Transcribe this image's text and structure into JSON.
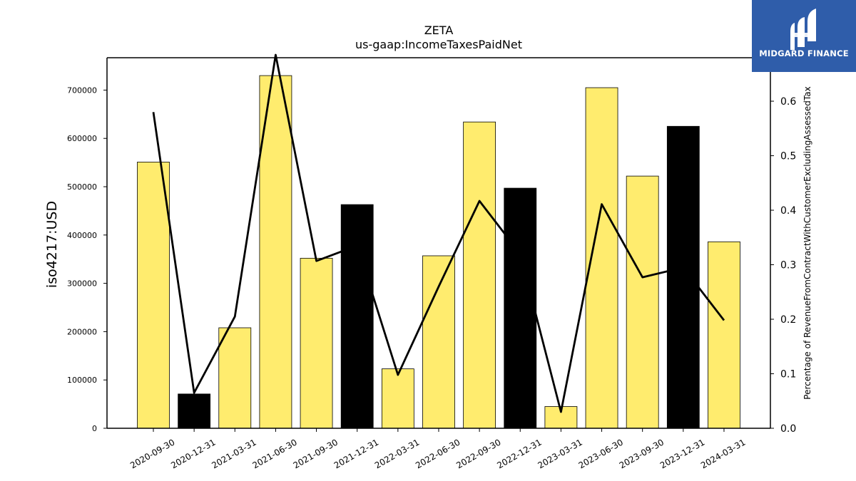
{
  "chart_data": {
    "type": "bar",
    "title": "ZETA",
    "subtitle": "us-gaap:IncomeTaxesPaidNet",
    "ylabel": "iso4217:USD",
    "y2label": "Percentage of RevenueFromContractWithCustomerExcludingAssessedTax",
    "categories": [
      "2020-09-30",
      "2020-12-31",
      "2021-03-31",
      "2021-06-30",
      "2021-09-30",
      "2021-12-31",
      "2022-03-31",
      "2022-06-30",
      "2022-09-30",
      "2022-12-31",
      "2023-03-31",
      "2023-06-30",
      "2023-09-30",
      "2023-12-31",
      "2024-03-31"
    ],
    "values": [
      551000,
      71000,
      208000,
      730000,
      352000,
      463000,
      123000,
      357000,
      634000,
      497000,
      45000,
      705000,
      522000,
      625000,
      386000
    ],
    "bar_colors": [
      "#ffec6e",
      "#000000",
      "#ffec6e",
      "#ffec6e",
      "#ffec6e",
      "#000000",
      "#ffec6e",
      "#ffec6e",
      "#ffec6e",
      "#000000",
      "#ffec6e",
      "#ffec6e",
      "#ffec6e",
      "#000000",
      "#ffec6e"
    ],
    "line_values": [
      0.58,
      0.065,
      0.205,
      0.685,
      0.307,
      0.335,
      0.098,
      0.26,
      0.417,
      0.32,
      0.03,
      0.411,
      0.277,
      0.295,
      0.198
    ],
    "ylim": [
      0,
      767000
    ],
    "y2lim": [
      0,
      0.685
    ],
    "yticks": [
      0,
      100000,
      200000,
      300000,
      400000,
      500000,
      600000,
      700000
    ],
    "y2ticks": [
      "0.0",
      "0.1",
      "0.2",
      "0.3",
      "0.4",
      "0.5",
      "0.6"
    ],
    "grid": false,
    "legend": "none"
  },
  "logo": {
    "text": "MIDGARD FINANCE",
    "color": "#2f5daa"
  }
}
